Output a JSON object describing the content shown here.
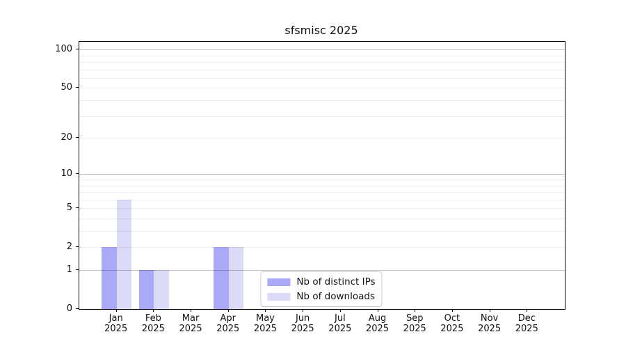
{
  "chart_data": {
    "type": "bar",
    "title": "sfsmisc 2025",
    "categories": [
      "Jan",
      "Feb",
      "Mar",
      "Apr",
      "May",
      "Jun",
      "Jul",
      "Aug",
      "Sep",
      "Oct",
      "Nov",
      "Dec"
    ],
    "category_year": "2025",
    "series": [
      {
        "name": "Nb of distinct IPs",
        "color": "#a9a9f7",
        "values": [
          2,
          1,
          0,
          2,
          0,
          0,
          0,
          0,
          0,
          0,
          0,
          0
        ]
      },
      {
        "name": "Nb of downloads",
        "color": "#dbdbf8",
        "values": [
          6,
          1,
          0,
          2,
          0,
          0,
          0,
          0,
          0,
          0,
          0,
          0
        ]
      }
    ],
    "y_scale": "log1p",
    "y_axis": {
      "tick_values": [
        0,
        1,
        2,
        5,
        10,
        20,
        50,
        100
      ],
      "major_gridlines": [
        1,
        10,
        100
      ],
      "minor_gridlines": [
        2,
        3,
        4,
        5,
        6,
        7,
        8,
        9,
        20,
        30,
        40,
        50,
        60,
        70,
        80,
        90
      ],
      "max": 115
    },
    "ylim": [
      0,
      115
    ],
    "grid": "horizontal",
    "legend_position": "lower center",
    "colors": {
      "bar_distinct_ips": "#a9a9f7",
      "bar_downloads": "#dbdbf8",
      "major_grid": "rgba(0,0,0,0.23)",
      "minor_grid": "rgba(0,0,0,0.065)",
      "spine": "#000000",
      "background": "#ffffff",
      "text": "#111111"
    }
  }
}
